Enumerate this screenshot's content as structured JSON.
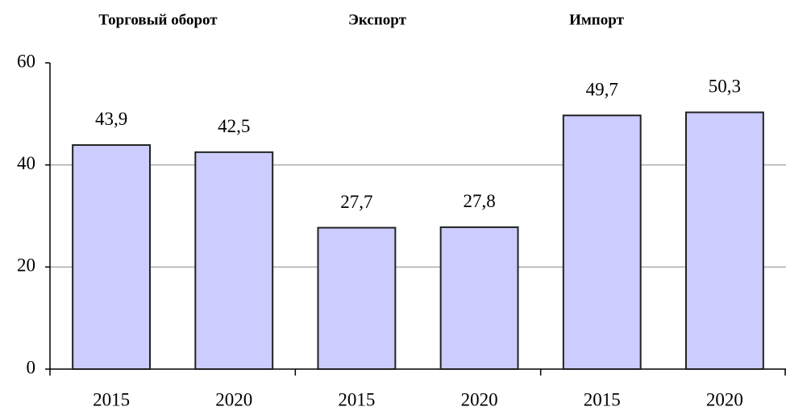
{
  "chart_data": {
    "type": "bar",
    "groups": [
      "Торговый оборот",
      "Экспорт",
      "Импорт"
    ],
    "categories": [
      "2015",
      "2020",
      "2015",
      "2020",
      "2015",
      "2020"
    ],
    "values": [
      43.9,
      42.5,
      27.7,
      27.8,
      49.7,
      50.3
    ],
    "value_labels": [
      "43,9",
      "42,5",
      "27,7",
      "27,8",
      "49,7",
      "50,3"
    ],
    "color": "#ccccff",
    "ylim": [
      0,
      60
    ],
    "yticks": [
      0,
      20,
      40,
      60
    ],
    "grid": true
  }
}
